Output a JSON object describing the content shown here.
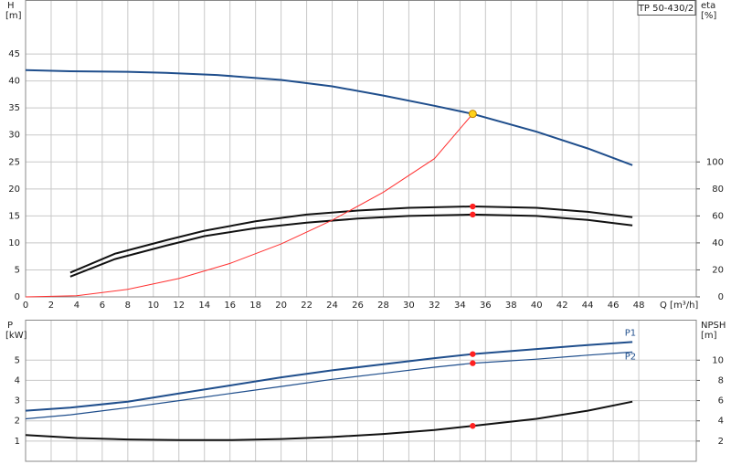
{
  "chart_data": [
    {
      "type": "line",
      "title": "TP 50-430/2",
      "y_label": "H",
      "y_unit": "[m]",
      "y2_label": "eta",
      "y2_unit": "[%]",
      "x_label": "Q [m³/h]",
      "xlim": [
        0,
        52.5
      ],
      "xticks": [
        0,
        2,
        4,
        6,
        8,
        10,
        12,
        14,
        16,
        18,
        20,
        22,
        24,
        26,
        28,
        30,
        32,
        34,
        36,
        38,
        40,
        42,
        44,
        46,
        48
      ],
      "ylim": [
        0,
        55
      ],
      "yticks": [
        0,
        5,
        10,
        15,
        20,
        25,
        30,
        35,
        40,
        45
      ],
      "y2lim": [
        0,
        220
      ],
      "y2ticks": [
        0,
        20,
        40,
        60,
        80,
        100
      ],
      "grid": true,
      "series": [
        {
          "color": "#1f4e8c",
          "width": 2,
          "x": [
            0,
            3.5,
            8,
            11,
            15,
            20,
            24,
            28,
            32,
            35,
            40,
            44,
            47.5
          ],
          "values": [
            42,
            41.8,
            41.7,
            41.5,
            41.1,
            40.2,
            39,
            37.3,
            35.4,
            33.9,
            30.6,
            27.5,
            24.4
          ]
        },
        {
          "color": "#111111",
          "width": 2,
          "axis": "y2",
          "x": [
            3.5,
            7,
            11,
            14,
            18,
            22,
            26,
            30,
            35,
            40,
            44,
            47.5
          ],
          "values": [
            18,
            32,
            42,
            49,
            56,
            61,
            64,
            66,
            67,
            66,
            63,
            59
          ]
        },
        {
          "color": "#111111",
          "width": 2,
          "axis": "y2",
          "x": [
            3.5,
            7,
            11,
            14,
            18,
            22,
            26,
            30,
            35,
            40,
            44,
            47.5
          ],
          "values": [
            15,
            28,
            38,
            45,
            51,
            55,
            58,
            60,
            61,
            60,
            57,
            53
          ]
        },
        {
          "color": "#ff3030",
          "width": 1,
          "x": [
            0,
            4,
            8,
            12,
            16,
            20,
            24,
            28,
            32,
            35
          ],
          "values": [
            0,
            0.2,
            1.4,
            3.4,
            6.2,
            9.8,
            14.2,
            19.4,
            25.6,
            33.9
          ]
        },
        {
          "color": "#ff2020",
          "marker": "dot",
          "axis": "y2",
          "x": [
            35,
            35
          ],
          "values": [
            67,
            61
          ]
        },
        {
          "color": "#ffd21a",
          "marker": "ring",
          "x": [
            35
          ],
          "values": [
            33.9
          ]
        }
      ]
    },
    {
      "type": "line",
      "y_label": "P",
      "y_unit": "[kW]",
      "y2_label": "NPSH",
      "y2_unit": "[m]",
      "xlim": [
        0,
        52.5
      ],
      "xticks": [
        0,
        2,
        4,
        6,
        8,
        10,
        12,
        14,
        16,
        18,
        20,
        22,
        24,
        26,
        28,
        30,
        32,
        34,
        36,
        38,
        40,
        42,
        44,
        46,
        48
      ],
      "ylim": [
        0,
        7
      ],
      "yticks": [
        1,
        2,
        3,
        4,
        5
      ],
      "y2lim": [
        0,
        14
      ],
      "y2ticks": [
        2,
        4,
        6,
        8,
        10
      ],
      "grid": true,
      "series": [
        {
          "name": "P1",
          "color": "#1f4e8c",
          "width": 2,
          "x": [
            0,
            3.5,
            8,
            12,
            16,
            20,
            24,
            28,
            32,
            35,
            40,
            44,
            47.5
          ],
          "values": [
            2.5,
            2.65,
            2.95,
            3.35,
            3.75,
            4.15,
            4.5,
            4.8,
            5.1,
            5.3,
            5.55,
            5.75,
            5.9
          ]
        },
        {
          "name": "P2",
          "color": "#1f4e8c",
          "width": 1.2,
          "x": [
            0,
            3.5,
            8,
            12,
            16,
            20,
            24,
            28,
            32,
            35,
            40,
            44,
            47.5
          ],
          "values": [
            2.1,
            2.3,
            2.65,
            3,
            3.35,
            3.7,
            4.05,
            4.35,
            4.65,
            4.85,
            5.05,
            5.25,
            5.4
          ]
        },
        {
          "color": "#111111",
          "width": 2,
          "axis": "y2",
          "x": [
            0,
            4,
            8,
            12,
            16,
            20,
            24,
            28,
            32,
            35,
            40,
            44,
            47.5
          ],
          "values": [
            2.6,
            2.3,
            2.16,
            2.1,
            2.1,
            2.2,
            2.4,
            2.7,
            3.1,
            3.5,
            4.2,
            5,
            5.9
          ]
        },
        {
          "color": "#ff2020",
          "marker": "dot",
          "x": [
            35,
            35
          ],
          "values": [
            5.3,
            4.85
          ]
        },
        {
          "color": "#ff2020",
          "marker": "dot",
          "axis": "y2",
          "x": [
            35
          ],
          "values": [
            3.5
          ]
        }
      ]
    }
  ]
}
